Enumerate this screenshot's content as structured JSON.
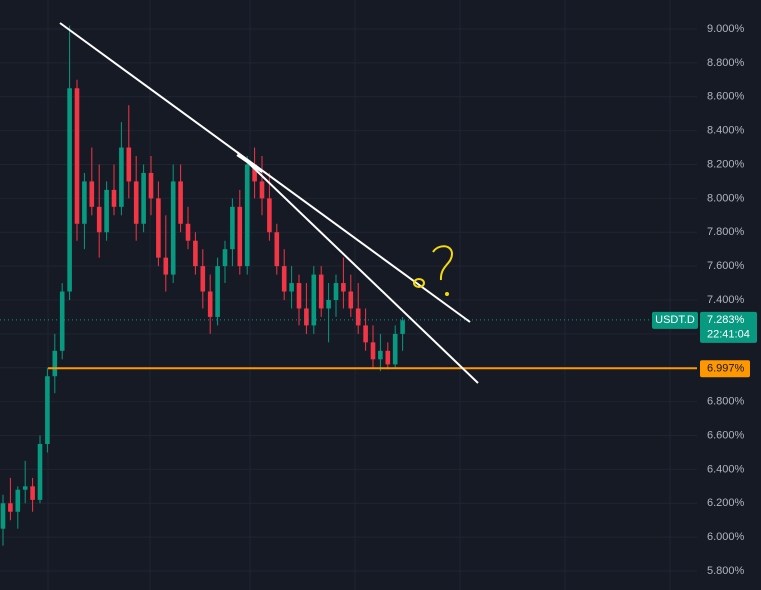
{
  "chart_data": {
    "type": "candlestick",
    "symbol": "USDT.D",
    "countdown": "22:41:04",
    "up_color": "#089981",
    "down_color": "#f23645",
    "open": [
      6.05,
      6.2,
      6.15,
      6.28,
      6.3,
      6.22,
      6.55,
      6.95,
      7.1,
      7.45,
      8.65,
      7.85,
      8.1,
      7.95,
      7.8,
      8.05,
      7.95,
      8.3,
      8.1,
      7.85,
      8.15,
      8.0,
      7.65,
      7.55,
      8.1,
      7.85,
      7.75,
      7.6,
      7.45,
      7.3,
      7.6,
      7.7,
      7.95,
      7.6,
      8.2,
      8.1,
      8.0,
      7.8,
      7.6,
      7.45,
      7.5,
      7.35,
      7.25,
      7.55,
      7.35,
      7.4,
      7.5,
      7.45,
      7.35,
      7.25,
      7.15,
      7.05,
      7.1,
      7.02,
      7.2
    ],
    "high": [
      6.25,
      6.35,
      6.3,
      6.45,
      6.35,
      6.6,
      7.0,
      7.2,
      7.5,
      9.02,
      8.7,
      8.15,
      8.3,
      8.2,
      8.1,
      8.2,
      8.45,
      8.55,
      8.25,
      8.2,
      8.25,
      8.1,
      7.9,
      8.2,
      8.2,
      7.95,
      7.8,
      7.7,
      7.55,
      7.65,
      7.75,
      8.0,
      8.05,
      8.25,
      8.3,
      8.25,
      8.15,
      7.85,
      7.7,
      7.6,
      7.55,
      7.5,
      7.6,
      7.6,
      7.5,
      7.55,
      7.65,
      7.55,
      7.5,
      7.35,
      7.25,
      7.2,
      7.15,
      7.25,
      7.3
    ],
    "low": [
      5.95,
      6.1,
      6.05,
      6.2,
      6.15,
      6.2,
      6.5,
      6.85,
      7.05,
      7.4,
      7.75,
      7.7,
      7.9,
      7.65,
      7.75,
      7.9,
      7.9,
      8.0,
      7.75,
      7.8,
      7.9,
      7.6,
      7.45,
      7.5,
      7.8,
      7.7,
      7.55,
      7.35,
      7.2,
      7.25,
      7.5,
      7.6,
      7.55,
      7.55,
      8.0,
      7.9,
      7.75,
      7.55,
      7.4,
      7.35,
      7.25,
      7.2,
      7.2,
      7.3,
      7.15,
      7.3,
      7.35,
      7.3,
      7.2,
      7.1,
      7.0,
      6.98,
      6.99,
      7.0,
      7.1
    ],
    "close": [
      6.2,
      6.15,
      6.28,
      6.3,
      6.22,
      6.55,
      6.95,
      7.1,
      7.45,
      8.65,
      7.85,
      8.1,
      7.95,
      7.8,
      8.05,
      7.95,
      8.3,
      8.1,
      7.85,
      8.15,
      8.0,
      7.65,
      7.55,
      8.1,
      7.85,
      7.75,
      7.6,
      7.45,
      7.3,
      7.6,
      7.7,
      7.95,
      7.6,
      8.2,
      8.1,
      8.0,
      7.8,
      7.6,
      7.45,
      7.5,
      7.35,
      7.25,
      7.55,
      7.35,
      7.4,
      7.5,
      7.45,
      7.35,
      7.25,
      7.15,
      7.05,
      7.1,
      7.02,
      7.2,
      7.28
    ],
    "last_price": {
      "value": 7.283,
      "label": "7.283%"
    },
    "level": {
      "value": 6.997,
      "label": "6.997%",
      "color": "#ff9800"
    },
    "ylim": [
      5.688,
      9.171
    ],
    "yticks": [
      {
        "value": 5.8,
        "label": "5.800%"
      },
      {
        "value": 6.0,
        "label": "6.000%"
      },
      {
        "value": 6.2,
        "label": "6.200%"
      },
      {
        "value": 6.4,
        "label": "6.400%"
      },
      {
        "value": 6.6,
        "label": "6.600%"
      },
      {
        "value": 6.8,
        "label": "6.800%"
      },
      {
        "value": 7.0,
        "label": "7.000%"
      },
      {
        "value": 7.2,
        "label": "7.200%"
      },
      {
        "value": 7.4,
        "label": "7.400%"
      },
      {
        "value": 7.6,
        "label": "7.600%"
      },
      {
        "value": 7.8,
        "label": "7.800%"
      },
      {
        "value": 8.0,
        "label": "8.000%"
      },
      {
        "value": 8.2,
        "label": "8.200%"
      },
      {
        "value": 8.4,
        "label": "8.400%"
      },
      {
        "value": 8.6,
        "label": "8.600%"
      },
      {
        "value": 8.8,
        "label": "8.800%"
      },
      {
        "value": 9.0,
        "label": "9.000%"
      }
    ],
    "grid": true
  }
}
